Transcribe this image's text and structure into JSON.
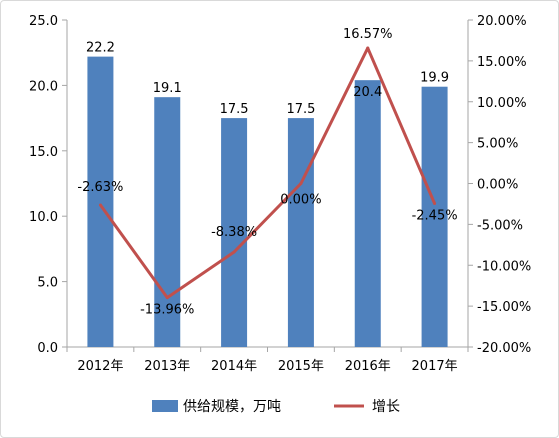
{
  "chart_data": {
    "type": "bar+line",
    "categories": [
      "2012年",
      "2013年",
      "2014年",
      "2015年",
      "2016年",
      "2017年"
    ],
    "series": [
      {
        "name": "供给规模，万吨",
        "kind": "bar",
        "axis": "left",
        "values": [
          22.2,
          19.1,
          17.5,
          17.5,
          20.4,
          19.9
        ],
        "labels": [
          "22.2",
          "19.1",
          "17.5",
          "17.5",
          "20.4",
          "19.9"
        ],
        "color": "#4f81bd"
      },
      {
        "name": "增长",
        "kind": "line",
        "axis": "right",
        "values": [
          -2.63,
          -13.96,
          -8.38,
          0.0,
          16.57,
          -2.45
        ],
        "labels": [
          "-2.63%",
          "-13.96%",
          "-8.38%",
          "0.00%",
          "16.57%",
          "-2.45%"
        ],
        "color": "#c0504d"
      }
    ],
    "y_left": {
      "ylim": [
        0,
        25
      ],
      "ticks": [
        "0.0",
        "5.0",
        "10.0",
        "15.0",
        "20.0",
        "25.0"
      ]
    },
    "y_right": {
      "ylim": [
        -20,
        20
      ],
      "ticks": [
        "-20.00%",
        "-15.00%",
        "-10.00%",
        "-5.00%",
        "0.00%",
        "5.00%",
        "10.00%",
        "15.00%",
        "20.00%"
      ]
    },
    "grid": false,
    "legend": "bottom"
  }
}
